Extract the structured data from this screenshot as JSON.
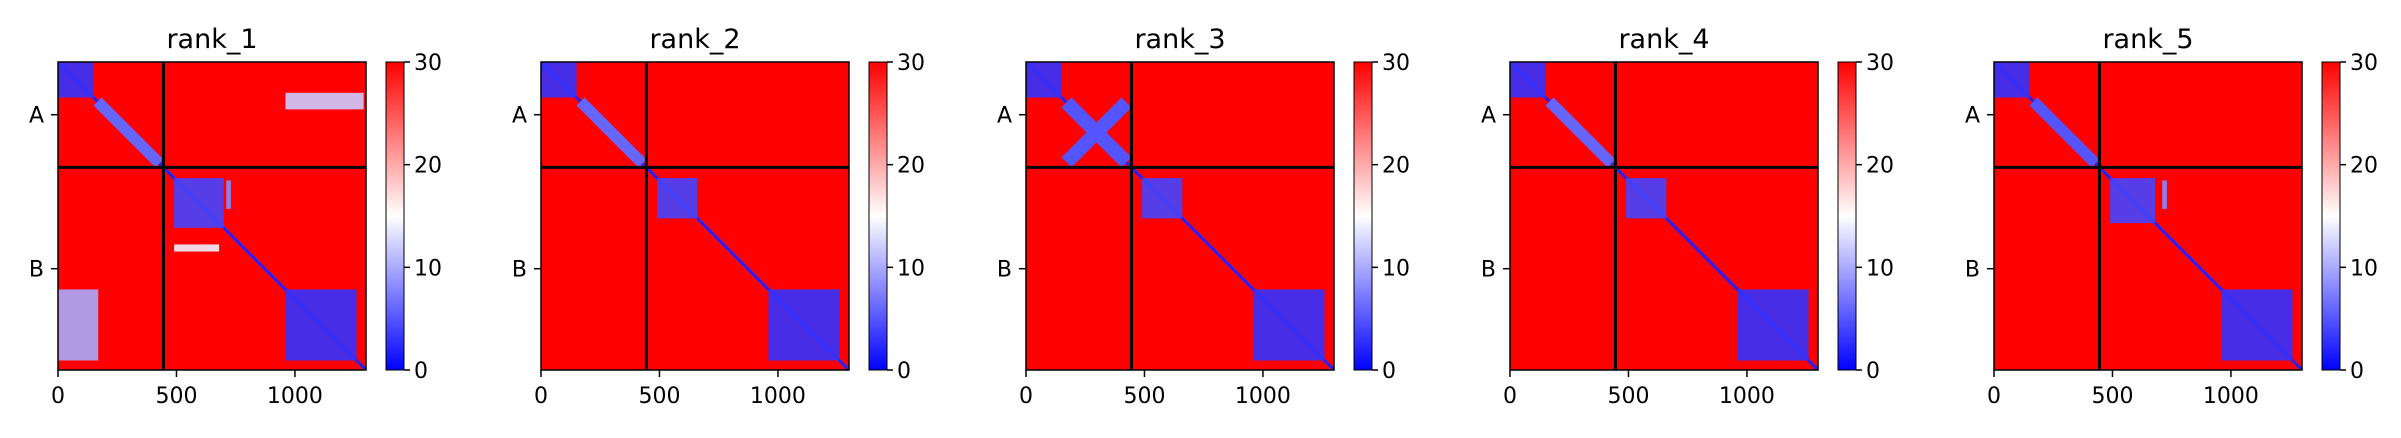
{
  "chart_data": {
    "type": "heatmap",
    "colormap": {
      "name": "bwr",
      "stops": [
        "#0000ff",
        "#ffffff",
        "#ff0000"
      ],
      "vmin": 0,
      "vmax": 30
    },
    "colorbar_ticks": [
      0,
      10,
      20,
      30
    ],
    "xticks": [
      0,
      500,
      1000
    ],
    "xlim": [
      0,
      1300
    ],
    "chain_labels": [
      "A",
      "B"
    ],
    "chain_break": 445,
    "panels": [
      {
        "title": "rank_1",
        "blocks": [
          {
            "x": [
              0,
              150
            ],
            "y": [
              0,
              150
            ],
            "v": 3
          },
          {
            "x": [
              150,
              445
            ],
            "y": [
              150,
              445
            ],
            "v": 6,
            "diag": true
          },
          {
            "x": [
              960,
              1290
            ],
            "y": [
              130,
              200
            ],
            "v": 12
          },
          {
            "x": [
              490,
              700
            ],
            "y": [
              490,
              700
            ],
            "v": 4
          },
          {
            "x": [
              710,
              730
            ],
            "y": [
              500,
              620
            ],
            "v": 8
          },
          {
            "x": [
              490,
              680
            ],
            "y": [
              770,
              800
            ],
            "v": 14
          },
          {
            "x": [
              960,
              1260
            ],
            "y": [
              960,
              1260
            ],
            "v": 3
          },
          {
            "x": [
              0,
              170
            ],
            "y": [
              960,
              1260
            ],
            "v": 10
          }
        ]
      },
      {
        "title": "rank_2",
        "blocks": [
          {
            "x": [
              0,
              150
            ],
            "y": [
              0,
              150
            ],
            "v": 3
          },
          {
            "x": [
              150,
              445
            ],
            "y": [
              150,
              445
            ],
            "v": 6,
            "diag": true
          },
          {
            "x": [
              490,
              660
            ],
            "y": [
              490,
              660
            ],
            "v": 4
          },
          {
            "x": [
              960,
              1260
            ],
            "y": [
              960,
              1260
            ],
            "v": 3
          }
        ]
      },
      {
        "title": "rank_3",
        "blocks": [
          {
            "x": [
              0,
              150
            ],
            "y": [
              0,
              150
            ],
            "v": 3
          },
          {
            "x": [
              150,
              445
            ],
            "y": [
              150,
              445
            ],
            "v": 5,
            "cross": true
          },
          {
            "x": [
              490,
              660
            ],
            "y": [
              490,
              660
            ],
            "v": 4
          },
          {
            "x": [
              960,
              1260
            ],
            "y": [
              960,
              1260
            ],
            "v": 3
          }
        ]
      },
      {
        "title": "rank_4",
        "blocks": [
          {
            "x": [
              0,
              150
            ],
            "y": [
              0,
              150
            ],
            "v": 3
          },
          {
            "x": [
              150,
              445
            ],
            "y": [
              150,
              445
            ],
            "v": 6,
            "diag": true
          },
          {
            "x": [
              490,
              660
            ],
            "y": [
              490,
              660
            ],
            "v": 4
          },
          {
            "x": [
              960,
              1260
            ],
            "y": [
              960,
              1260
            ],
            "v": 3
          }
        ]
      },
      {
        "title": "rank_5",
        "blocks": [
          {
            "x": [
              0,
              150
            ],
            "y": [
              0,
              150
            ],
            "v": 3
          },
          {
            "x": [
              150,
              445
            ],
            "y": [
              150,
              445
            ],
            "v": 5,
            "diag": true
          },
          {
            "x": [
              490,
              680
            ],
            "y": [
              490,
              680
            ],
            "v": 4
          },
          {
            "x": [
              710,
              730
            ],
            "y": [
              500,
              620
            ],
            "v": 8
          },
          {
            "x": [
              960,
              1260
            ],
            "y": [
              960,
              1260
            ],
            "v": 3
          }
        ]
      }
    ]
  }
}
